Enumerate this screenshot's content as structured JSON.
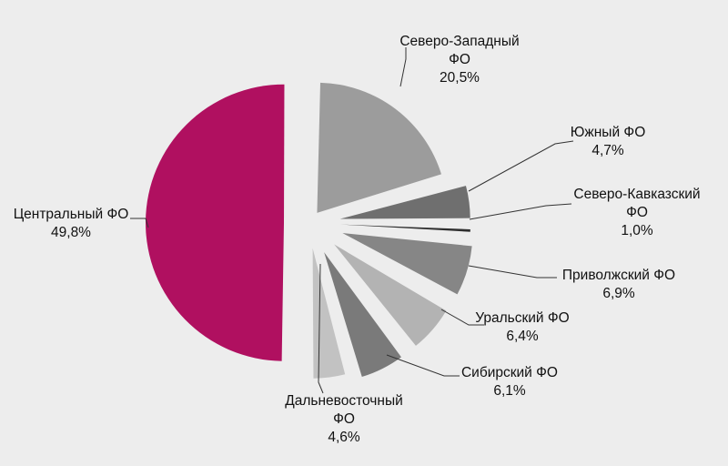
{
  "chart_data": {
    "type": "pie",
    "slices": [
      {
        "label": "Центральный ФО",
        "value": 49.8,
        "value_label": "49,8%",
        "color": "#b01060"
      },
      {
        "label": "Северо-Западный ФО",
        "value": 20.5,
        "value_label": "20,5%",
        "color": "#9c9c9c"
      },
      {
        "label": "Южный ФО",
        "value": 4.7,
        "value_label": "4,7%",
        "color": "#6f6f6f"
      },
      {
        "label": "Северо-Кавказский ФО",
        "value": 1.0,
        "value_label": "1,0%",
        "color": "#2e2e2e"
      },
      {
        "label": "Приволжский ФО",
        "value": 6.9,
        "value_label": "6,9%",
        "color": "#868686"
      },
      {
        "label": "Уральский ФО",
        "value": 6.4,
        "value_label": "6,4%",
        "color": "#b3b3b3"
      },
      {
        "label": "Сибирский ФО",
        "value": 6.1,
        "value_label": "6,1%",
        "color": "#7a7a7a"
      },
      {
        "label": "Дальневосточный ФО",
        "value": 4.6,
        "value_label": "4,6%",
        "color": "#c2c2c2"
      }
    ],
    "legend": "none"
  }
}
